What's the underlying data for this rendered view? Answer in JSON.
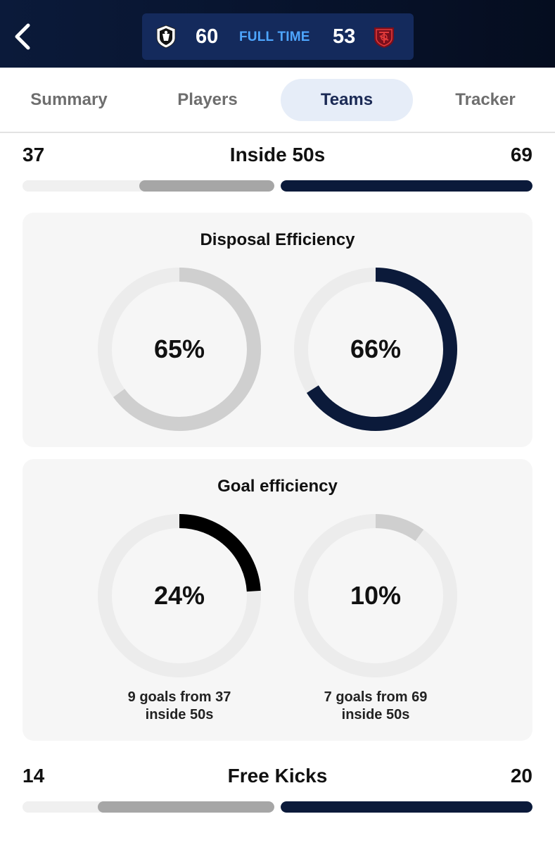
{
  "header": {
    "home_score": "60",
    "status": "FULL TIME",
    "away_score": "53",
    "home_logo_icon": "magpie-crest-icon",
    "away_logo_icon": "demons-crest-icon",
    "colors": {
      "bg": "#07132c",
      "scorebox": "#142a5c",
      "status": "#4ea6ff"
    }
  },
  "tabs": [
    {
      "label": "Summary",
      "active": false
    },
    {
      "label": "Players",
      "active": false
    },
    {
      "label": "Teams",
      "active": true
    },
    {
      "label": "Tracker",
      "active": false
    }
  ],
  "inside50": {
    "title": "Inside 50s",
    "home": "37",
    "away": "69",
    "home_value": 37,
    "away_value": 69
  },
  "disposal": {
    "title": "Disposal Efficiency",
    "home": {
      "label": "65%",
      "pct": 65,
      "color": "#cfcfcf"
    },
    "away": {
      "label": "66%",
      "pct": 66,
      "color": "#0b1a3a"
    }
  },
  "goal": {
    "title": "Goal efficiency",
    "home": {
      "label": "24%",
      "pct": 24,
      "color": "#000000",
      "caption1": "9 goals from 37",
      "caption2": "inside 50s"
    },
    "away": {
      "label": "10%",
      "pct": 10,
      "color": "#cfcfcf",
      "caption1": "7 goals from 69",
      "caption2": "inside 50s"
    }
  },
  "freekicks": {
    "title": "Free Kicks",
    "home": "14",
    "away": "20",
    "home_value": 14,
    "away_value": 20
  }
}
